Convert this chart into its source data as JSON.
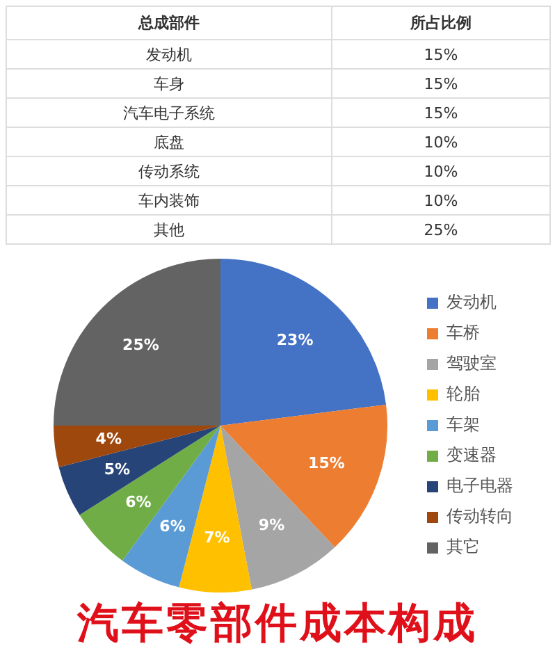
{
  "chart_data": [
    {
      "type": "other",
      "annotations": [
        "总成部件",
        "所占比例",
        "发动机",
        "15%",
        "车身",
        "15%",
        "汽车电子系统",
        "15%",
        "底盘",
        "10%",
        "传动系统",
        "10%",
        "车内装饰",
        "10%",
        "其他",
        "25%"
      ]
    },
    {
      "type": "pie",
      "title": "汽车零部件成本构成",
      "categories": [
        "发动机",
        "车桥",
        "驾驶室",
        "轮胎",
        "车架",
        "变速器",
        "电子电器",
        "传动转向",
        "其它"
      ],
      "values": [
        23,
        15,
        9,
        7,
        6,
        6,
        5,
        4,
        25
      ],
      "colors": [
        "#4472c4",
        "#ed7d31",
        "#a5a5a5",
        "#ffc000",
        "#5b9bd5",
        "#70ad47",
        "#264478",
        "#9e480e",
        "#636363"
      ],
      "value_labels": [
        "23%",
        "15%",
        "9%",
        "7%",
        "6%",
        "6%",
        "5%",
        "4%",
        "25%"
      ],
      "legend": "right"
    }
  ]
}
